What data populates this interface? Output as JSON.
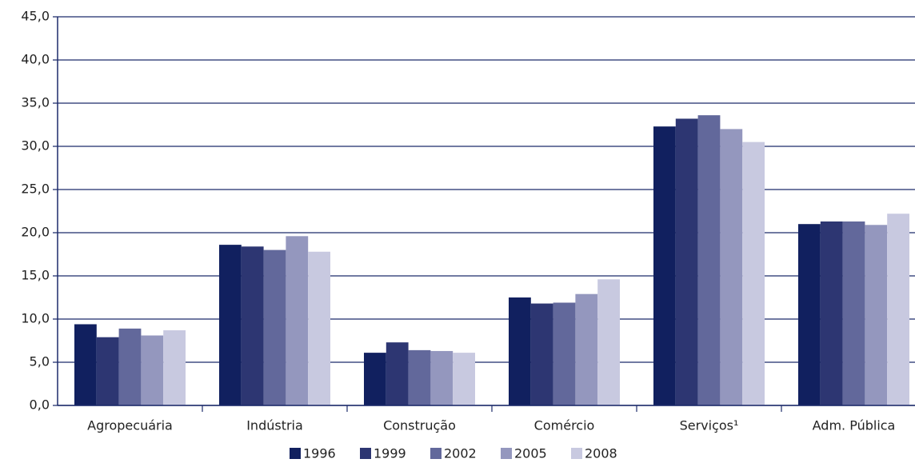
{
  "chart_data": {
    "type": "bar",
    "categories": [
      "Agropecuária",
      "Indústria",
      "Construção",
      "Comércio",
      "Serviços¹",
      "Adm. Pública"
    ],
    "series": [
      {
        "name": "1996",
        "color": "#11205f",
        "values": [
          9.4,
          18.6,
          6.1,
          12.5,
          32.3,
          21.0
        ]
      },
      {
        "name": "1999",
        "color": "#2d3672",
        "values": [
          7.9,
          18.4,
          7.3,
          11.8,
          33.2,
          21.3
        ]
      },
      {
        "name": "2002",
        "color": "#62689b",
        "values": [
          8.9,
          18.0,
          6.4,
          11.9,
          33.6,
          21.3
        ]
      },
      {
        "name": "2005",
        "color": "#9497be",
        "values": [
          8.1,
          19.6,
          6.3,
          12.9,
          32.0,
          20.9
        ]
      },
      {
        "name": "2008",
        "color": "#c8c9e0",
        "values": [
          8.7,
          17.8,
          6.1,
          14.6,
          30.5,
          22.2
        ]
      }
    ],
    "ylim": [
      0,
      45
    ],
    "yticks": [
      {
        "value": 0,
        "label": "0,0"
      },
      {
        "value": 5,
        "label": "5,0"
      },
      {
        "value": 10,
        "label": "10,0"
      },
      {
        "value": 15,
        "label": "15,0"
      },
      {
        "value": 20,
        "label": "20,0"
      },
      {
        "value": 25,
        "label": "25,0"
      },
      {
        "value": 30,
        "label": "30,0"
      },
      {
        "value": 35,
        "label": "35,0"
      },
      {
        "value": 40,
        "label": "40,0"
      },
      {
        "value": 45,
        "label": "45,0"
      }
    ],
    "grid": true,
    "legend": "bottom"
  }
}
